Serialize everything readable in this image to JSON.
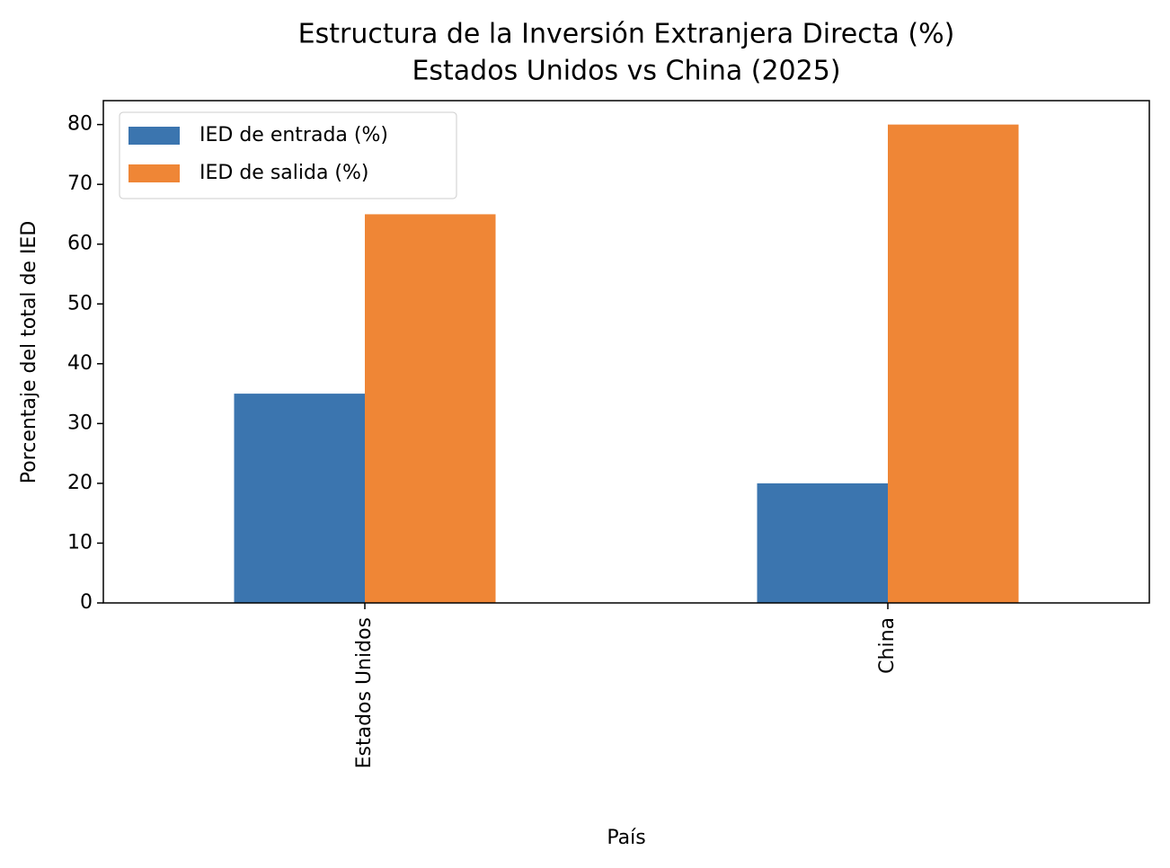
{
  "chart_data": {
    "type": "bar",
    "title": [
      "Estructura de la Inversión Extranjera Directa (%)",
      "Estados Unidos vs China (2025)"
    ],
    "xlabel": "País",
    "ylabel": "Porcentaje del total de IED",
    "categories": [
      "Estados Unidos",
      "China"
    ],
    "series": [
      {
        "name": "IED de entrada (%)",
        "color": "#3b75af",
        "values": [
          35,
          20
        ]
      },
      {
        "name": "IED de salida (%)",
        "color": "#ef8636",
        "values": [
          65,
          80
        ]
      }
    ],
    "ylim": [
      0,
      84
    ],
    "yticks": [
      0,
      10,
      20,
      30,
      40,
      50,
      60,
      70,
      80
    ],
    "legend": "upper left"
  }
}
